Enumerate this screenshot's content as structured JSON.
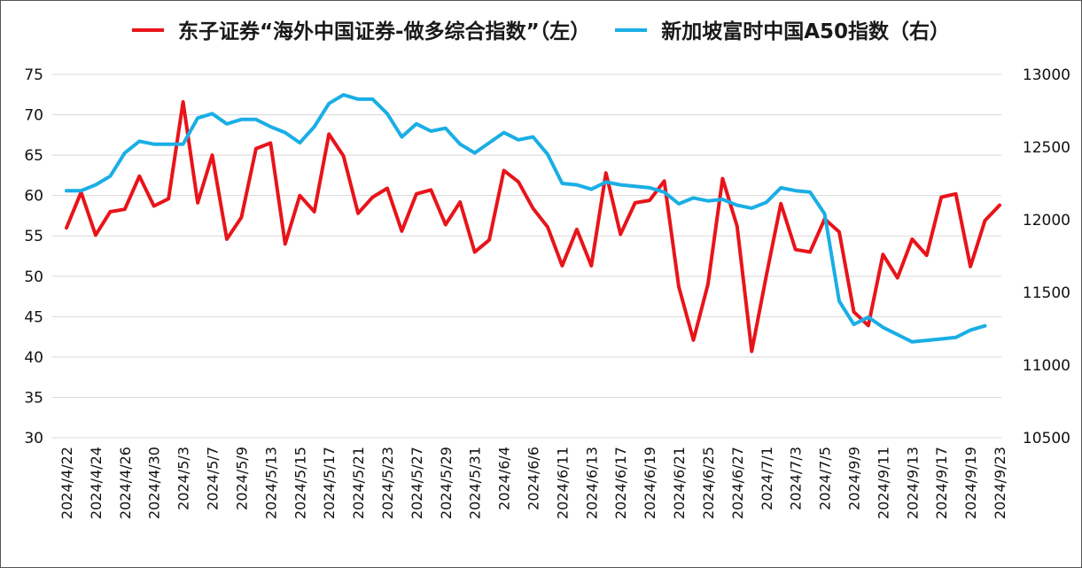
{
  "chart_data": {
    "type": "line",
    "title": "",
    "x": [
      "2024/4/22",
      "2024/4/23",
      "2024/4/24",
      "2024/4/25",
      "2024/4/26",
      "2024/4/29",
      "2024/4/30",
      "2024/5/2",
      "2024/5/3",
      "2024/5/6",
      "2024/5/7",
      "2024/5/8",
      "2024/5/9",
      "2024/5/10",
      "2024/5/13",
      "2024/5/14",
      "2024/5/15",
      "2024/5/16",
      "2024/5/17",
      "2024/5/20",
      "2024/5/21",
      "2024/5/22",
      "2024/5/23",
      "2024/5/24",
      "2024/5/27",
      "2024/5/28",
      "2024/5/29",
      "2024/5/30",
      "2024/5/31",
      "2024/6/3",
      "2024/6/4",
      "2024/6/5",
      "2024/6/6",
      "2024/6/7",
      "2024/6/11",
      "2024/6/12",
      "2024/6/13",
      "2024/6/14",
      "2024/6/17",
      "2024/6/18",
      "2024/6/19",
      "2024/6/20",
      "2024/6/21",
      "2024/6/24",
      "2024/6/25",
      "2024/6/26",
      "2024/6/27",
      "2024/6/28",
      "2024/7/1",
      "2024/7/2",
      "2024/7/3",
      "2024/7/4",
      "2024/7/5",
      "2024/9/6",
      "2024/9/9",
      "2024/9/10",
      "2024/9/11",
      "2024/9/12",
      "2024/9/13",
      "2024/9/16",
      "2024/9/17",
      "2024/9/18",
      "2024/9/19",
      "2024/9/20",
      "2024/9/23"
    ],
    "x_tick_labels": [
      "2024/4/22",
      "2024/4/24",
      "2024/4/26",
      "2024/4/30",
      "2024/5/3",
      "2024/5/7",
      "2024/5/9",
      "2024/5/13",
      "2024/5/15",
      "2024/5/17",
      "2024/5/21",
      "2024/5/23",
      "2024/5/27",
      "2024/5/29",
      "2024/5/31",
      "2024/6/4",
      "2024/6/6",
      "2024/6/11",
      "2024/6/13",
      "2024/6/17",
      "2024/6/19",
      "2024/6/21",
      "2024/6/25",
      "2024/6/27",
      "2024/7/1",
      "2024/7/3",
      "2024/7/5",
      "2024/9/9",
      "2024/9/11",
      "2024/9/13",
      "2024/9/17",
      "2024/9/19",
      "2024/9/23"
    ],
    "y_left": {
      "min": 30,
      "max": 75,
      "step": 5
    },
    "y_right": {
      "min": 10500,
      "max": 13000,
      "step": 500
    },
    "grid": "horizontal",
    "legend_position": "top",
    "series": [
      {
        "name": "东子证券“海外中国证券-做多综合指数”（左）",
        "axis": "left",
        "color": "#e8141a",
        "values": [
          56.0,
          60.4,
          55.1,
          58.0,
          58.3,
          62.4,
          58.7,
          59.6,
          71.6,
          59.1,
          65.0,
          54.6,
          57.3,
          65.8,
          66.5,
          54.0,
          60.0,
          58.0,
          67.6,
          64.9,
          57.8,
          59.8,
          60.9,
          55.6,
          60.2,
          60.7,
          56.4,
          59.2,
          53.0,
          54.5,
          63.1,
          61.7,
          58.4,
          56.1,
          51.3,
          55.8,
          51.3,
          62.8,
          55.2,
          59.1,
          59.4,
          61.8,
          48.7,
          42.1,
          49.0,
          62.1,
          56.2,
          40.7,
          50.1,
          59.0,
          53.3,
          53.0,
          57.1,
          55.5,
          45.6,
          43.9,
          52.7,
          49.8,
          54.6,
          52.6,
          59.8,
          60.2,
          51.2,
          56.9,
          58.8
        ]
      },
      {
        "name": "新加坡富时中国A50指数（右）",
        "axis": "right",
        "color": "#1aaee5",
        "values": [
          12200,
          12200,
          12240,
          12300,
          12460,
          12540,
          12520,
          12520,
          12520,
          12700,
          12730,
          12660,
          12690,
          12690,
          12640,
          12600,
          12530,
          12640,
          12800,
          12860,
          12830,
          12830,
          12730,
          12570,
          12660,
          12610,
          12630,
          12520,
          12460,
          12530,
          12600,
          12550,
          12570,
          12450,
          12250,
          12240,
          12210,
          12260,
          12240,
          12230,
          12220,
          12190,
          12110,
          12150,
          12130,
          12140,
          12100,
          12080,
          12120,
          12220,
          12200,
          12190,
          12040,
          11440,
          11280,
          11330,
          11260,
          11210,
          11160,
          11170,
          11180,
          11190,
          11240,
          11270,
          null
        ]
      }
    ]
  }
}
